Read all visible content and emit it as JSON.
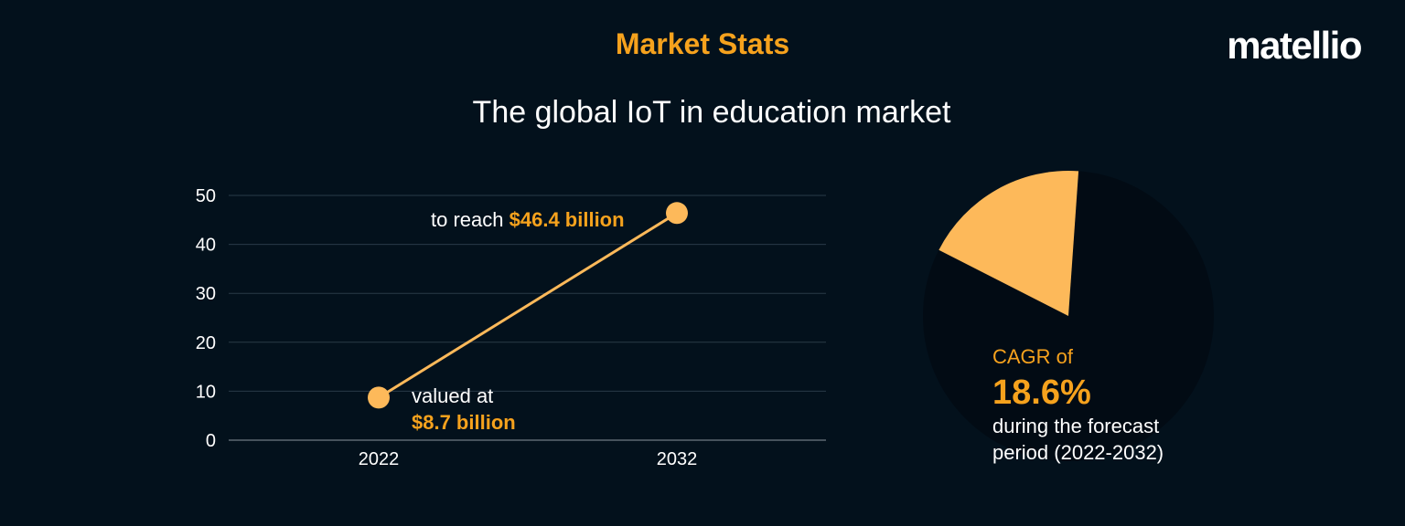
{
  "header": {
    "heading": "Market Stats",
    "subtitle": "The global IoT in education market",
    "logo": "matellio"
  },
  "colors": {
    "background": "#03111c",
    "accent": "#f6a21d",
    "marker": "#fdb95a",
    "pie_dark": "#020b14"
  },
  "chart_data": [
    {
      "type": "line",
      "x": [
        "2022",
        "2032"
      ],
      "series": [
        {
          "values": [
            8.7,
            46.4
          ]
        }
      ],
      "yticks": [
        "0",
        "10",
        "20",
        "30",
        "40",
        "50"
      ],
      "ylim": [
        0,
        50
      ],
      "grid": true,
      "annotations": [
        {
          "prefix": "valued at",
          "value": "$8.7 billion"
        },
        {
          "prefix": "to reach",
          "value": "$46.4 billion"
        }
      ]
    },
    {
      "type": "pie",
      "values": [
        18.6,
        81.4
      ],
      "label_top": "CAGR of",
      "label_value": "18.6%",
      "label_bottom_1": "during the forecast",
      "label_bottom_2": "period (2022-2032)"
    }
  ]
}
